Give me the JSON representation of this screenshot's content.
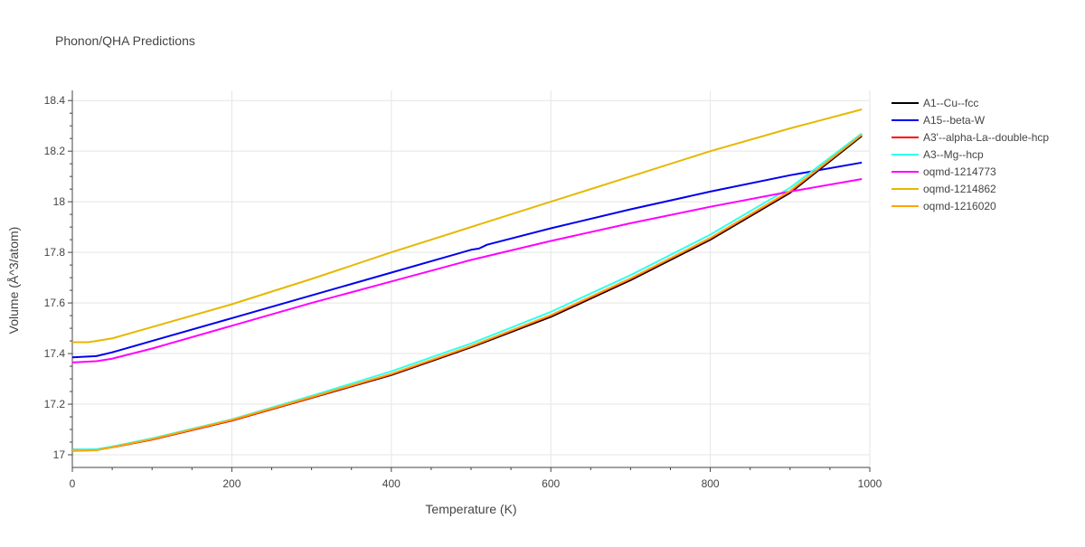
{
  "chart_data": {
    "type": "line",
    "title": "Phonon/QHA Predictions",
    "xlabel": "Temperature (K)",
    "ylabel": "Volume (Å^3/atom)",
    "xlim": [
      0,
      1000
    ],
    "ylim": [
      16.95,
      18.44
    ],
    "xticks": [
      0,
      200,
      400,
      600,
      800,
      1000
    ],
    "xtick_labels": [
      "0",
      "200",
      "400",
      "600",
      "800",
      "1000"
    ],
    "yticks": [
      17,
      17.2,
      17.4,
      17.6,
      17.8,
      18,
      18.2,
      18.4
    ],
    "ytick_labels": [
      "17",
      "17.2",
      "17.4",
      "17.6",
      "17.8",
      "18",
      "18.2",
      "18.4"
    ],
    "grid": true,
    "legend_position": "right",
    "series": [
      {
        "name": "A1--Cu--fcc",
        "color": "#000000",
        "x": [
          0,
          30,
          50,
          100,
          200,
          300,
          400,
          500,
          600,
          700,
          800,
          900,
          990
        ],
        "y": [
          17.02,
          17.02,
          17.03,
          17.06,
          17.135,
          17.225,
          17.315,
          17.425,
          17.545,
          17.69,
          17.85,
          18.035,
          18.26
        ]
      },
      {
        "name": "A15--beta-W",
        "color": "#0000ee",
        "x": [
          0,
          30,
          50,
          100,
          200,
          300,
          400,
          500,
          510,
          520,
          600,
          700,
          800,
          900,
          990
        ],
        "y": [
          17.385,
          17.39,
          17.405,
          17.45,
          17.54,
          17.63,
          17.72,
          17.81,
          17.815,
          17.83,
          17.895,
          17.97,
          18.04,
          18.105,
          18.155
        ]
      },
      {
        "name": "A3'--alpha-La--double-hcp",
        "color": "#ff0000",
        "x": [
          0,
          30,
          50,
          100,
          200,
          300,
          400,
          500,
          600,
          700,
          800,
          900,
          990
        ],
        "y": [
          17.02,
          17.02,
          17.03,
          17.06,
          17.135,
          17.226,
          17.318,
          17.428,
          17.55,
          17.695,
          17.855,
          18.04,
          18.265
        ]
      },
      {
        "name": "A3--Mg--hcp",
        "color": "#33ffee",
        "x": [
          0,
          30,
          50,
          100,
          200,
          300,
          400,
          500,
          600,
          700,
          800,
          900,
          990
        ],
        "y": [
          17.02,
          17.022,
          17.033,
          17.065,
          17.14,
          17.233,
          17.33,
          17.44,
          17.565,
          17.71,
          17.87,
          18.055,
          18.27
        ]
      },
      {
        "name": "oqmd-1214773",
        "color": "#ff00ff",
        "x": [
          0,
          30,
          50,
          100,
          200,
          300,
          400,
          500,
          600,
          700,
          800,
          900,
          990
        ],
        "y": [
          17.365,
          17.37,
          17.38,
          17.42,
          17.51,
          17.6,
          17.685,
          17.77,
          17.845,
          17.915,
          17.98,
          18.04,
          18.09
        ]
      },
      {
        "name": "oqmd-1214862",
        "color": "#e6b800",
        "x": [
          0,
          20,
          30,
          50,
          100,
          200,
          300,
          400,
          500,
          600,
          700,
          800,
          900,
          990
        ],
        "y": [
          17.445,
          17.445,
          17.45,
          17.46,
          17.505,
          17.595,
          17.695,
          17.8,
          17.9,
          18.0,
          18.1,
          18.2,
          18.29,
          18.365
        ]
      },
      {
        "name": "oqmd-1216020",
        "color": "#ffa500",
        "x": [
          0,
          30,
          50,
          100,
          200,
          300,
          400,
          500,
          600,
          700,
          800,
          900,
          990
        ],
        "y": [
          17.015,
          17.018,
          17.03,
          17.062,
          17.138,
          17.228,
          17.32,
          17.43,
          17.552,
          17.697,
          17.857,
          18.043,
          18.265
        ]
      }
    ]
  }
}
